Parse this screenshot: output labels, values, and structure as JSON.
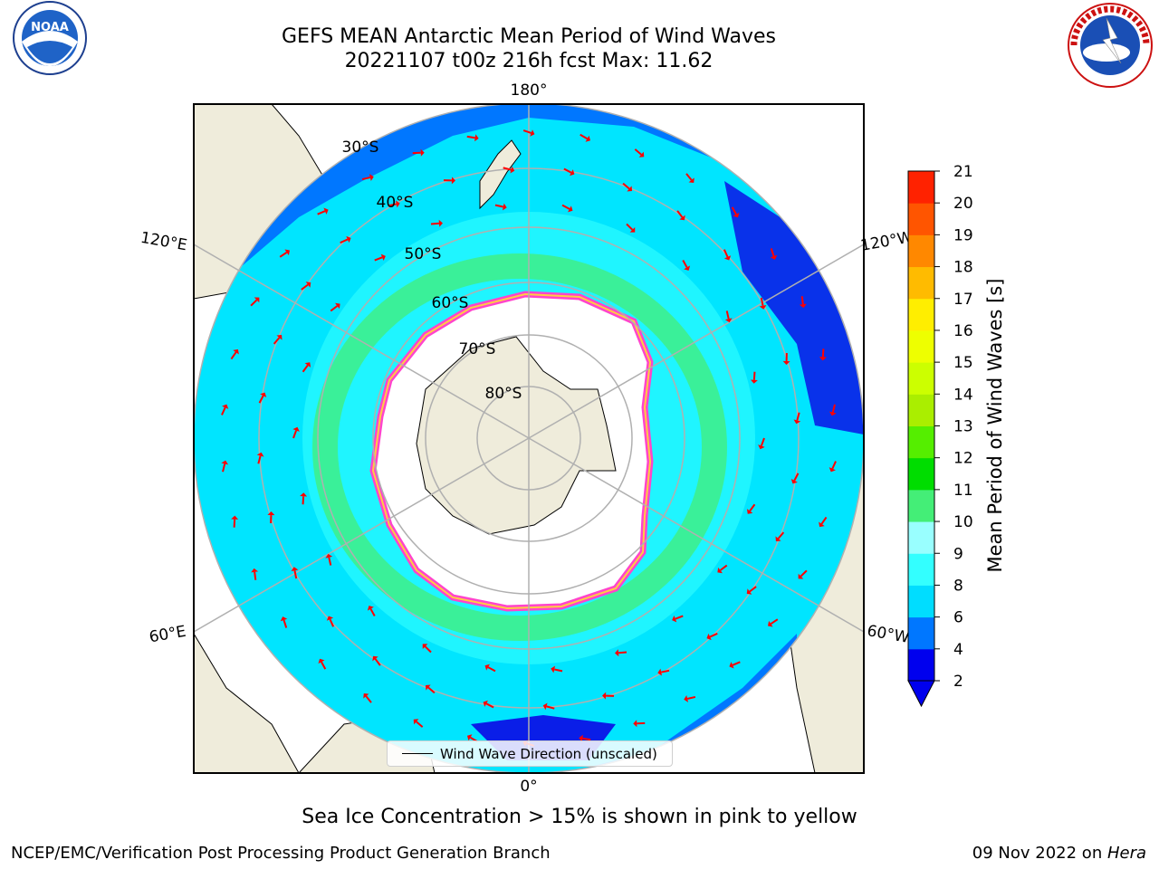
{
  "header": {
    "title_line1": "GEFS MEAN Antarctic Mean Period of Wind Waves",
    "title_line2": "20221107 t00z 216h fcst   Max: 11.62"
  },
  "logos": {
    "left": {
      "name": "noaa-logo",
      "text": "NOAA",
      "ring_text": "NATIONAL OCEANIC AND ATMOSPHERIC ADMINISTRATION · U.S. DEPARTMENT OF COMMERCE"
    },
    "right": {
      "name": "national-weather-service-logo",
      "ring_text": "NATIONAL WEATHER SERVICE"
    }
  },
  "map": {
    "projection": "south polar stereographic",
    "longitude_labels": [
      "180°",
      "120°E",
      "120°W",
      "60°E",
      "60°W",
      "0°"
    ],
    "latitude_labels": [
      "30°S",
      "40°S",
      "50°S",
      "60°S",
      "70°S",
      "80°S"
    ],
    "legend": {
      "label": "Wind Wave Direction (unscaled)"
    },
    "colors": {
      "land": "#efecdb",
      "ice_edge_pink": "#ff44cc",
      "ice_edge_yellow": "#ffcc44",
      "arrows": "#ff0000"
    }
  },
  "colorbar": {
    "label": "Mean Period of Wind Waves [s]",
    "ticks": [
      "2",
      "4",
      "6",
      "8",
      "9",
      "10",
      "11",
      "12",
      "13",
      "14",
      "15",
      "16",
      "17",
      "18",
      "19",
      "20",
      "21"
    ],
    "colors": [
      "#0000ee",
      "#0077ff",
      "#00ddff",
      "#33ffff",
      "#99ffff",
      "#44ee77",
      "#00dd00",
      "#55ee00",
      "#aaee00",
      "#ccff00",
      "#eeff00",
      "#ffee00",
      "#ffbb00",
      "#ff8800",
      "#ff5500",
      "#ff2200",
      "#ff0000"
    ]
  },
  "chart_data": {
    "type": "heatmap",
    "title": "GEFS MEAN Antarctic Mean Period of Wind Waves",
    "subtitle": "20221107 t00z 216h fcst   Max: 11.62",
    "colorbar_label": "Mean Period of Wind Waves [s]",
    "colorbar_range": [
      2,
      21
    ],
    "max_value": 11.62
  },
  "footer": {
    "note": "Sea Ice Concentration > 15% is shown in pink to yellow",
    "credit_left": "NCEP/EMC/Verification Post Processing Product Generation Branch",
    "credit_date": "09 Nov 2022 on ",
    "credit_host": "Hera"
  }
}
